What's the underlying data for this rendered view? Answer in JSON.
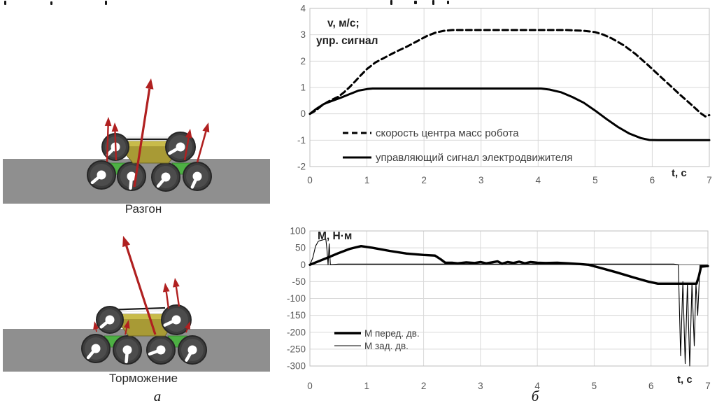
{
  "panel_a": {
    "accel_caption": "Разгон",
    "brake_caption": "Торможение",
    "label": "а"
  },
  "panel_b": {
    "label": "б"
  },
  "colors": {
    "arrow_red": "#b02020",
    "ground_gray": "#8f8f8f",
    "wheel_dark": "#3d3d3d",
    "wheel_face": "#4c4c4c",
    "hub_white": "#ffffff",
    "body_olive": "#a89a35",
    "body_light": "#c8bb4a",
    "green_connector": "#4db043",
    "grid_gray": "#d9d9d9",
    "plot_border": "#bfbfbf",
    "axis_line": "#808080",
    "tick_text": "#595959",
    "title_text": "#1f1f1f",
    "legend_text": "#404040",
    "curve_black": "#000000"
  },
  "chart_data": [
    {
      "id": "velocity_chart",
      "type": "line",
      "axis_title_lines": [
        "v, м/с;",
        "упр. сигнал"
      ],
      "xlabel": "t, c",
      "xlim": [
        0,
        7
      ],
      "ylim": [
        -2,
        4
      ],
      "xticks": [
        0,
        1,
        2,
        3,
        4,
        5,
        6,
        7
      ],
      "yticks": [
        4,
        3,
        2,
        1,
        0,
        -1,
        -2
      ],
      "grid": true,
      "legend_position": "inside-bottom-left",
      "series": [
        {
          "name": "скорость центра масс робота",
          "style": "dashed",
          "points": [
            [
              0,
              0
            ],
            [
              0.1,
              0.12
            ],
            [
              0.2,
              0.3
            ],
            [
              0.3,
              0.44
            ],
            [
              0.4,
              0.55
            ],
            [
              0.5,
              0.65
            ],
            [
              0.6,
              0.82
            ],
            [
              0.7,
              1.02
            ],
            [
              0.8,
              1.25
            ],
            [
              0.9,
              1.48
            ],
            [
              1.0,
              1.7
            ],
            [
              1.15,
              1.95
            ],
            [
              1.3,
              2.12
            ],
            [
              1.5,
              2.35
            ],
            [
              1.7,
              2.55
            ],
            [
              1.9,
              2.78
            ],
            [
              2.05,
              2.95
            ],
            [
              2.2,
              3.08
            ],
            [
              2.35,
              3.15
            ],
            [
              2.5,
              3.18
            ],
            [
              3.0,
              3.18
            ],
            [
              3.5,
              3.18
            ],
            [
              4.0,
              3.18
            ],
            [
              4.5,
              3.18
            ],
            [
              4.8,
              3.15
            ],
            [
              5.0,
              3.1
            ],
            [
              5.15,
              3.0
            ],
            [
              5.3,
              2.85
            ],
            [
              5.5,
              2.6
            ],
            [
              5.7,
              2.28
            ],
            [
              5.9,
              1.9
            ],
            [
              6.1,
              1.5
            ],
            [
              6.3,
              1.1
            ],
            [
              6.5,
              0.7
            ],
            [
              6.7,
              0.32
            ],
            [
              6.85,
              0.02
            ],
            [
              6.93,
              -0.1
            ],
            [
              7.0,
              -0.05
            ]
          ]
        },
        {
          "name": "управляющий сигнал электродвижителя",
          "style": "solid",
          "points": [
            [
              0,
              0
            ],
            [
              0.12,
              0.2
            ],
            [
              0.25,
              0.38
            ],
            [
              0.4,
              0.5
            ],
            [
              0.55,
              0.62
            ],
            [
              0.7,
              0.75
            ],
            [
              0.85,
              0.88
            ],
            [
              1.0,
              0.94
            ],
            [
              1.1,
              0.96
            ],
            [
              1.5,
              0.96
            ],
            [
              2.0,
              0.96
            ],
            [
              2.5,
              0.96
            ],
            [
              3.0,
              0.96
            ],
            [
              3.5,
              0.96
            ],
            [
              4.05,
              0.96
            ],
            [
              4.2,
              0.92
            ],
            [
              4.4,
              0.82
            ],
            [
              4.6,
              0.64
            ],
            [
              4.8,
              0.42
            ],
            [
              5.0,
              0.12
            ],
            [
              5.2,
              -0.2
            ],
            [
              5.4,
              -0.5
            ],
            [
              5.6,
              -0.75
            ],
            [
              5.8,
              -0.92
            ],
            [
              5.95,
              -0.99
            ],
            [
              6.1,
              -1.0
            ],
            [
              6.5,
              -1.0
            ],
            [
              7.0,
              -1.0
            ]
          ]
        }
      ]
    },
    {
      "id": "torque_chart",
      "type": "line",
      "axis_title_lines": [
        "М, Н·м"
      ],
      "xlabel": "t, c",
      "xlim": [
        0,
        7
      ],
      "ylim": [
        -300,
        100
      ],
      "xticks": [
        0,
        1,
        2,
        3,
        4,
        5,
        6,
        7
      ],
      "yticks": [
        100,
        50,
        0,
        -50,
        -100,
        -150,
        -200,
        -250,
        -300
      ],
      "grid": true,
      "zero_axis": true,
      "legend_position": "inside-left",
      "series": [
        {
          "name": "М перед. дв.",
          "style": "thick",
          "points": [
            [
              0,
              0
            ],
            [
              0.15,
              10
            ],
            [
              0.3,
              20
            ],
            [
              0.5,
              34
            ],
            [
              0.7,
              47
            ],
            [
              0.9,
              55
            ],
            [
              1.1,
              50
            ],
            [
              1.4,
              41
            ],
            [
              1.7,
              33
            ],
            [
              2.0,
              29
            ],
            [
              2.2,
              27
            ],
            [
              2.3,
              16
            ],
            [
              2.38,
              6
            ],
            [
              2.5,
              6
            ],
            [
              2.6,
              4
            ],
            [
              2.75,
              7
            ],
            [
              2.9,
              5
            ],
            [
              3.0,
              8
            ],
            [
              3.1,
              4
            ],
            [
              3.2,
              7
            ],
            [
              3.3,
              10
            ],
            [
              3.38,
              3
            ],
            [
              3.48,
              8
            ],
            [
              3.58,
              5
            ],
            [
              3.68,
              9
            ],
            [
              3.78,
              4
            ],
            [
              3.88,
              8
            ],
            [
              4.0,
              6
            ],
            [
              4.15,
              5
            ],
            [
              4.35,
              6
            ],
            [
              4.55,
              4
            ],
            [
              4.75,
              2
            ],
            [
              4.9,
              0
            ],
            [
              5.1,
              -9
            ],
            [
              5.4,
              -23
            ],
            [
              5.7,
              -38
            ],
            [
              5.95,
              -50
            ],
            [
              6.12,
              -56
            ],
            [
              6.5,
              -56
            ],
            [
              6.8,
              -56
            ],
            [
              6.84,
              -35
            ],
            [
              6.88,
              -6
            ],
            [
              7.0,
              -4
            ]
          ]
        },
        {
          "name": "М зад. дв.",
          "style": "thin",
          "points": [
            [
              0,
              0
            ],
            [
              0.05,
              20
            ],
            [
              0.1,
              55
            ],
            [
              0.15,
              70
            ],
            [
              0.22,
              73
            ],
            [
              0.28,
              76
            ],
            [
              0.3,
              45
            ],
            [
              0.32,
              0
            ],
            [
              0.34,
              62
            ],
            [
              0.36,
              0
            ],
            [
              0.5,
              2
            ],
            [
              1.0,
              2
            ],
            [
              1.5,
              2
            ],
            [
              2.0,
              2
            ],
            [
              2.5,
              2
            ],
            [
              3.0,
              2
            ],
            [
              3.5,
              2
            ],
            [
              4.0,
              2
            ],
            [
              4.5,
              2
            ],
            [
              5.0,
              2
            ],
            [
              5.5,
              2
            ],
            [
              6.0,
              2
            ],
            [
              6.4,
              2
            ],
            [
              6.48,
              0
            ],
            [
              6.52,
              -270
            ],
            [
              6.56,
              -50
            ],
            [
              6.6,
              -293
            ],
            [
              6.64,
              -55
            ],
            [
              6.68,
              -300
            ],
            [
              6.72,
              -55
            ],
            [
              6.76,
              -240
            ],
            [
              6.79,
              -55
            ],
            [
              6.82,
              -150
            ],
            [
              6.86,
              -2
            ],
            [
              7.0,
              -2
            ]
          ]
        }
      ]
    }
  ]
}
